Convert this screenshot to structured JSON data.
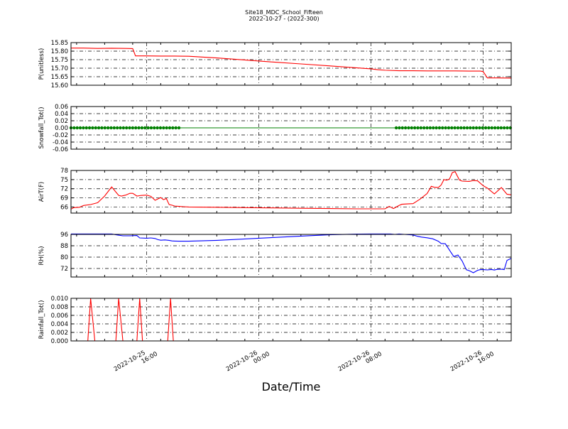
{
  "chart_data": {
    "title": "Site18_MDC_School_Fifteen",
    "subtitle": "2022-10-27 - (2022-300)",
    "xlabel": "Date/Time",
    "type": "line",
    "x_ticks": [
      {
        "x": 15.0,
        "label": [
          "2022-10-25",
          "16:00"
        ]
      },
      {
        "x": 23.0,
        "label": [
          "2022-10-26",
          "00:00"
        ]
      },
      {
        "x": 31.0,
        "label": [
          "2022-10-26",
          "08:00"
        ]
      },
      {
        "x": 39.0,
        "label": [
          "2022-10-26",
          "16:00"
        ]
      }
    ],
    "x_range": [
      9.6,
      41.0
    ],
    "panels": [
      {
        "ylabel": "P(unitless)",
        "ylim": [
          15.6,
          15.85
        ],
        "yticks": [
          "15.60",
          "15.65",
          "15.70",
          "15.75",
          "15.80",
          "15.85"
        ],
        "ytick_values": [
          15.6,
          15.65,
          15.7,
          15.75,
          15.8,
          15.85
        ],
        "series": [
          {
            "type": "line",
            "color": "#ff0000",
            "x": [
              9.6,
              10.5,
              11.5,
              12.5,
              13.5,
              14.0,
              14.2,
              15.0,
              16.0,
              17.0,
              18.0,
              20.0,
              22.0,
              24.0,
              26.0,
              28.0,
              30.0,
              31.0,
              31.5,
              32.0,
              33.0,
              34.0,
              35.0,
              36.0,
              37.0,
              38.0,
              38.8,
              39.0,
              39.3,
              40.0,
              41.0
            ],
            "y": [
              15.818,
              15.818,
              15.816,
              15.817,
              15.816,
              15.815,
              15.772,
              15.772,
              15.771,
              15.771,
              15.77,
              15.76,
              15.748,
              15.736,
              15.725,
              15.714,
              15.702,
              15.696,
              15.691,
              15.688,
              15.685,
              15.685,
              15.684,
              15.684,
              15.684,
              15.683,
              15.683,
              15.68,
              15.643,
              15.643,
              15.642
            ]
          }
        ]
      },
      {
        "ylabel": "Snowfall_Tot()",
        "ylim": [
          -0.06,
          0.06
        ],
        "yticks": [
          "-0.06",
          "-0.04",
          "-0.02",
          "0.00",
          "0.02",
          "0.04",
          "0.06"
        ],
        "ytick_values": [
          -0.06,
          -0.04,
          -0.02,
          0.0,
          0.02,
          0.04,
          0.06
        ],
        "series": [
          {
            "type": "line_markers",
            "color": "#008000",
            "x": [
              9.6,
              41.0
            ],
            "y": [
              0,
              0
            ],
            "marker_ranges": [
              [
                9.6,
                17.4,
                0.22
              ],
              [
                32.8,
                41.0,
                0.22
              ]
            ]
          }
        ]
      },
      {
        "ylabel": "AirT(F)",
        "ylim": [
          64,
          78
        ],
        "yticks": [
          "66",
          "69",
          "72",
          "75",
          "78"
        ],
        "ytick_values": [
          66,
          69,
          72,
          75,
          78
        ],
        "series": [
          {
            "type": "line",
            "color": "#ff0000",
            "x": [
              9.6,
              9.8,
              10.2,
              10.5,
              11.0,
              11.5,
              12.0,
              12.5,
              13.0,
              13.2,
              13.5,
              13.8,
              14.0,
              14.3,
              14.6,
              15.0,
              15.3,
              15.6,
              16.0,
              16.2,
              16.4,
              16.6,
              16.8,
              17.0,
              17.3,
              17.6,
              18.0,
              20.0,
              22.0,
              24.0,
              26.0,
              28.0,
              30.0,
              31.0,
              32.0,
              32.3,
              32.6,
              33.0,
              33.2,
              33.5,
              34.0,
              34.5,
              35.0,
              35.3,
              35.5,
              35.8,
              36.0,
              36.2,
              36.4,
              36.6,
              36.8,
              37.0,
              37.3,
              37.5,
              38.0,
              38.3,
              38.6,
              39.0,
              39.3,
              39.8,
              40.3,
              40.7,
              41.0
            ],
            "y": [
              65.3,
              65.8,
              65.9,
              66.5,
              66.8,
              67.4,
              69.6,
              72.6,
              69.8,
              69.6,
              69.9,
              70.5,
              70.5,
              69.6,
              69.8,
              69.9,
              69.5,
              68.2,
              69.1,
              68.4,
              68.8,
              66.8,
              66.6,
              66.3,
              66.2,
              66.1,
              66.0,
              65.9,
              65.8,
              65.7,
              65.6,
              65.5,
              65.4,
              65.4,
              65.4,
              66.2,
              65.5,
              66.5,
              66.9,
              67.0,
              67.1,
              68.6,
              70.4,
              72.8,
              72.5,
              72.4,
              73.2,
              75.0,
              74.8,
              75.2,
              77.3,
              77.6,
              74.9,
              74.5,
              74.4,
              74.7,
              74.6,
              73.0,
              72.2,
              70.3,
              72.4,
              70.2,
              70.0
            ]
          }
        ]
      },
      {
        "ylabel": "RH(%)",
        "ylim": [
          66,
          96
        ],
        "yticks": [
          "72",
          "80",
          "88",
          "96"
        ],
        "ytick_values": [
          72,
          80,
          88,
          96
        ],
        "series": [
          {
            "type": "line",
            "color": "#0000ff",
            "x": [
              9.6,
              10.5,
              11.0,
              12.0,
              12.5,
              12.9,
              13.3,
              13.8,
              14.3,
              14.5,
              15.0,
              15.3,
              15.6,
              15.8,
              16.0,
              16.3,
              16.6,
              16.8,
              17.0,
              17.3,
              17.6,
              18.0,
              20.0,
              22.0,
              24.0,
              26.0,
              28.0,
              30.0,
              31.0,
              32.0,
              32.4,
              32.7,
              33.0,
              33.4,
              34.0,
              34.3,
              34.6,
              35.0,
              35.4,
              35.8,
              36.0,
              36.3,
              36.6,
              36.9,
              37.2,
              37.5,
              37.8,
              38.0,
              38.3,
              38.6,
              38.8,
              39.0,
              39.3,
              39.6,
              39.8,
              40.0,
              40.3,
              40.5,
              40.7,
              41.0
            ],
            "y": [
              96.3,
              96.3,
              96.3,
              96.3,
              96.3,
              95.6,
              95.0,
              95.0,
              95.2,
              93.5,
              93.3,
              93.5,
              93.1,
              92.3,
              91.9,
              92.1,
              91.8,
              91.4,
              91.3,
              91.2,
              91.2,
              91.2,
              91.8,
              92.8,
              93.8,
              94.8,
              95.7,
              96.2,
              96.3,
              96.3,
              96.3,
              96.0,
              96.3,
              96.0,
              95.6,
              94.7,
              94.1,
              93.6,
              92.9,
              91.2,
              89.6,
              89.4,
              84.9,
              80.4,
              81.5,
              77.3,
              71.1,
              70.5,
              69.0,
              70.7,
              71.2,
              71.2,
              71.0,
              71.3,
              70.9,
              71.4,
              71.5,
              71.2,
              77.7,
              79.1
            ]
          }
        ]
      },
      {
        "ylabel": "Rainfall_Tot()",
        "ylim": [
          0,
          0.01
        ],
        "yticks": [
          "0.000",
          "0.002",
          "0.004",
          "0.006",
          "0.008",
          "0.010"
        ],
        "ytick_values": [
          0,
          0.002,
          0.004,
          0.006,
          0.008,
          0.01
        ],
        "series": [
          {
            "type": "line",
            "color": "#ff0000",
            "x": [
              9.6,
              10.8,
              11.0,
              11.3,
              12.8,
              13.0,
              13.3,
              14.3,
              14.5,
              14.7,
              16.5,
              16.7,
              16.9,
              41.0
            ],
            "y": [
              0,
              0,
              0.01,
              0,
              0,
              0.01,
              0,
              0,
              0.01,
              0,
              0,
              0.01,
              0,
              0
            ]
          }
        ]
      }
    ]
  }
}
